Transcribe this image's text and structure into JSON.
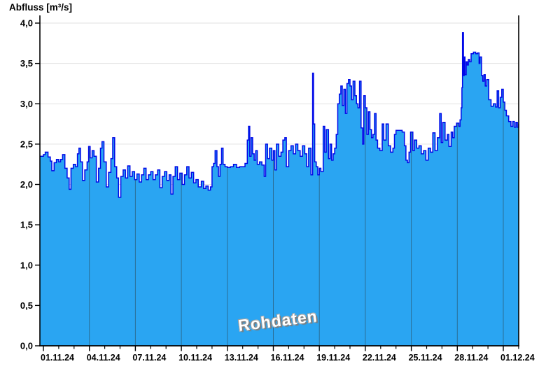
{
  "chart_data": {
    "type": "area",
    "title": "Abfluss [m³/s]",
    "watermark": "Rohdaten",
    "legend": "none",
    "x_axis": {
      "tick_labels": [
        "01.11.24",
        "04.11.24",
        "07.11.24",
        "10.11.24",
        "13.11.24",
        "16.11.24",
        "19.11.24",
        "22.11.24",
        "25.11.24",
        "28.11.24",
        "01.12.24"
      ],
      "major_tick_days": [
        0,
        3,
        6,
        9,
        12,
        15,
        18,
        21,
        24,
        27,
        30
      ],
      "minor_tick_interval_days": 1,
      "domain_days": [
        -0.23,
        31
      ]
    },
    "y_axis": {
      "label": "Abfluss [m³/s]",
      "min": 0.0,
      "max": 4.0,
      "tick_step": 0.5,
      "tick_labels": [
        "0,0",
        "0,5",
        "1,0",
        "1,5",
        "2,0",
        "2,5",
        "3,0",
        "3,5",
        "4,0"
      ]
    },
    "grid": {
      "horizontal": true,
      "vertical": true,
      "vertical_clipped_to_area": true
    },
    "colors": {
      "fill": "#2aa5f2",
      "line": "#0008e8",
      "axis": "#000000",
      "h_grid": "#e2e2e2",
      "v_grid": "#2b6e96",
      "watermark": "#ffffff"
    },
    "series": [
      {
        "name": "Abfluss Rohdaten",
        "unit": "m³/s",
        "interpolation": "step",
        "points": [
          [
            -0.23,
            2.35
          ],
          [
            0,
            2.37
          ],
          [
            0.12,
            2.4
          ],
          [
            0.3,
            2.34
          ],
          [
            0.45,
            2.29
          ],
          [
            0.55,
            2.17
          ],
          [
            0.7,
            2.27
          ],
          [
            0.85,
            2.31
          ],
          [
            1.0,
            2.28
          ],
          [
            1.12,
            2.31
          ],
          [
            1.25,
            2.37
          ],
          [
            1.4,
            2.2
          ],
          [
            1.55,
            2.08
          ],
          [
            1.68,
            1.94
          ],
          [
            1.8,
            2.2
          ],
          [
            1.95,
            2.25
          ],
          [
            2.1,
            2.22
          ],
          [
            2.22,
            2.38
          ],
          [
            2.32,
            2.45
          ],
          [
            2.42,
            2.28
          ],
          [
            2.55,
            2.05
          ],
          [
            2.7,
            2.18
          ],
          [
            2.85,
            2.28
          ],
          [
            2.95,
            2.47
          ],
          [
            3.05,
            2.33
          ],
          [
            3.18,
            2.42
          ],
          [
            3.3,
            2.35
          ],
          [
            3.45,
            2.03
          ],
          [
            3.6,
            2.2
          ],
          [
            3.72,
            2.45
          ],
          [
            3.82,
            2.53
          ],
          [
            3.95,
            2.28
          ],
          [
            4.1,
            1.97
          ],
          [
            4.25,
            2.15
          ],
          [
            4.4,
            2.32
          ],
          [
            4.52,
            2.58
          ],
          [
            4.65,
            2.22
          ],
          [
            4.78,
            2.08
          ],
          [
            4.9,
            1.84
          ],
          [
            5.05,
            2.1
          ],
          [
            5.2,
            2.18
          ],
          [
            5.35,
            2.08
          ],
          [
            5.5,
            2.23
          ],
          [
            5.65,
            2.1
          ],
          [
            5.8,
            2.16
          ],
          [
            5.95,
            2.06
          ],
          [
            6.1,
            2.13
          ],
          [
            6.25,
            2.03
          ],
          [
            6.4,
            2.12
          ],
          [
            6.55,
            2.2
          ],
          [
            6.7,
            2.06
          ],
          [
            6.85,
            2.12
          ],
          [
            7.0,
            2.16
          ],
          [
            7.15,
            2.06
          ],
          [
            7.3,
            2.12
          ],
          [
            7.45,
            2.18
          ],
          [
            7.6,
            1.96
          ],
          [
            7.75,
            2.1
          ],
          [
            7.9,
            2.16
          ],
          [
            8.05,
            2.05
          ],
          [
            8.2,
            2.12
          ],
          [
            8.32,
            1.88
          ],
          [
            8.45,
            2.1
          ],
          [
            8.6,
            2.22
          ],
          [
            8.75,
            2.06
          ],
          [
            8.9,
            2.14
          ],
          [
            9.05,
            2.0
          ],
          [
            9.2,
            2.12
          ],
          [
            9.35,
            2.22
          ],
          [
            9.5,
            2.08
          ],
          [
            9.65,
            2.15
          ],
          [
            9.8,
            2.02
          ],
          [
            9.95,
            2.06
          ],
          [
            10.1,
            1.97
          ],
          [
            10.3,
            2.04
          ],
          [
            10.45,
            1.95
          ],
          [
            10.6,
            1.98
          ],
          [
            10.75,
            1.93
          ],
          [
            10.9,
            1.97
          ],
          [
            11.0,
            2.22
          ],
          [
            11.1,
            2.26
          ],
          [
            11.2,
            2.42
          ],
          [
            11.32,
            2.22
          ],
          [
            11.42,
            2.1
          ],
          [
            11.52,
            2.25
          ],
          [
            11.62,
            2.45
          ],
          [
            11.72,
            2.25
          ],
          [
            11.85,
            2.22
          ],
          [
            12.0,
            2.21
          ],
          [
            12.2,
            2.22
          ],
          [
            12.4,
            2.25
          ],
          [
            12.6,
            2.21
          ],
          [
            12.8,
            2.22
          ],
          [
            13.0,
            2.22
          ],
          [
            13.15,
            2.26
          ],
          [
            13.3,
            2.55
          ],
          [
            13.38,
            2.72
          ],
          [
            13.46,
            2.35
          ],
          [
            13.55,
            2.58
          ],
          [
            13.65,
            2.38
          ],
          [
            13.75,
            2.3
          ],
          [
            13.85,
            2.42
          ],
          [
            13.95,
            2.25
          ],
          [
            14.1,
            2.28
          ],
          [
            14.25,
            2.24
          ],
          [
            14.4,
            2.1
          ],
          [
            14.5,
            2.5
          ],
          [
            14.62,
            2.32
          ],
          [
            14.75,
            2.45
          ],
          [
            14.9,
            2.3
          ],
          [
            15.0,
            2.42
          ],
          [
            15.1,
            2.18
          ],
          [
            15.2,
            2.5
          ],
          [
            15.35,
            2.35
          ],
          [
            15.5,
            2.4
          ],
          [
            15.62,
            2.55
          ],
          [
            15.75,
            2.58
          ],
          [
            15.85,
            2.22
          ],
          [
            16.0,
            2.42
          ],
          [
            16.15,
            2.48
          ],
          [
            16.3,
            2.38
          ],
          [
            16.45,
            2.5
          ],
          [
            16.6,
            2.42
          ],
          [
            16.75,
            2.35
          ],
          [
            16.9,
            2.48
          ],
          [
            17.05,
            2.38
          ],
          [
            17.18,
            2.22
          ],
          [
            17.3,
            2.45
          ],
          [
            17.45,
            2.12
          ],
          [
            17.56,
            3.38
          ],
          [
            17.62,
            2.75
          ],
          [
            17.7,
            2.28
          ],
          [
            17.8,
            2.22
          ],
          [
            17.9,
            2.12
          ],
          [
            18.0,
            2.2
          ],
          [
            18.1,
            2.16
          ],
          [
            18.25,
            2.72
          ],
          [
            18.35,
            2.4
          ],
          [
            18.45,
            2.68
          ],
          [
            18.6,
            2.32
          ],
          [
            18.7,
            2.5
          ],
          [
            18.8,
            2.3
          ],
          [
            18.9,
            2.38
          ],
          [
            19.0,
            2.45
          ],
          [
            19.1,
            2.62
          ],
          [
            19.2,
            3.0
          ],
          [
            19.3,
            3.12
          ],
          [
            19.4,
            3.22
          ],
          [
            19.5,
            2.98
          ],
          [
            19.6,
            3.18
          ],
          [
            19.7,
            2.88
          ],
          [
            19.8,
            3.25
          ],
          [
            19.9,
            3.3
          ],
          [
            20.0,
            3.22
          ],
          [
            20.1,
            3.05
          ],
          [
            20.2,
            3.28
          ],
          [
            20.32,
            3.1
          ],
          [
            20.42,
            3.0
          ],
          [
            20.52,
            2.95
          ],
          [
            20.62,
            3.28
          ],
          [
            20.72,
            2.7
          ],
          [
            20.82,
            2.5
          ],
          [
            20.9,
            3.1
          ],
          [
            21.0,
            2.95
          ],
          [
            21.1,
            2.62
          ],
          [
            21.2,
            2.9
          ],
          [
            21.3,
            2.68
          ],
          [
            21.4,
            2.58
          ],
          [
            21.5,
            2.62
          ],
          [
            21.6,
            2.88
          ],
          [
            21.7,
            2.55
          ],
          [
            21.8,
            2.45
          ],
          [
            21.95,
            2.42
          ],
          [
            22.1,
            2.75
          ],
          [
            22.2,
            2.55
          ],
          [
            22.35,
            2.75
          ],
          [
            22.5,
            2.48
          ],
          [
            22.65,
            2.4
          ],
          [
            22.8,
            2.45
          ],
          [
            22.9,
            2.62
          ],
          [
            23.0,
            2.67
          ],
          [
            23.2,
            2.67
          ],
          [
            23.4,
            2.65
          ],
          [
            23.55,
            2.48
          ],
          [
            23.65,
            2.3
          ],
          [
            23.75,
            2.27
          ],
          [
            23.85,
            2.4
          ],
          [
            23.95,
            2.65
          ],
          [
            24.1,
            2.42
          ],
          [
            24.2,
            2.55
          ],
          [
            24.35,
            2.45
          ],
          [
            24.5,
            2.48
          ],
          [
            24.65,
            2.38
          ],
          [
            24.8,
            2.42
          ],
          [
            24.95,
            2.3
          ],
          [
            25.1,
            2.45
          ],
          [
            25.25,
            2.4
          ],
          [
            25.4,
            2.64
          ],
          [
            25.55,
            2.42
          ],
          [
            25.7,
            2.58
          ],
          [
            25.85,
            2.88
          ],
          [
            25.95,
            2.52
          ],
          [
            26.05,
            2.77
          ],
          [
            26.2,
            2.55
          ],
          [
            26.35,
            2.62
          ],
          [
            26.45,
            2.47
          ],
          [
            26.6,
            2.65
          ],
          [
            26.7,
            2.58
          ],
          [
            26.8,
            2.72
          ],
          [
            26.95,
            2.76
          ],
          [
            27.1,
            2.72
          ],
          [
            27.18,
            2.8
          ],
          [
            27.25,
            2.95
          ],
          [
            27.3,
            3.2
          ],
          [
            27.34,
            3.88
          ],
          [
            27.4,
            3.35
          ],
          [
            27.45,
            3.58
          ],
          [
            27.5,
            3.36
          ],
          [
            27.58,
            3.52
          ],
          [
            27.65,
            3.48
          ],
          [
            27.72,
            3.55
          ],
          [
            27.8,
            3.52
          ],
          [
            27.9,
            3.62
          ],
          [
            28.05,
            3.64
          ],
          [
            28.2,
            3.62
          ],
          [
            28.32,
            3.63
          ],
          [
            28.42,
            3.5
          ],
          [
            28.48,
            3.58
          ],
          [
            28.58,
            3.35
          ],
          [
            28.66,
            3.28
          ],
          [
            28.74,
            3.36
          ],
          [
            28.82,
            3.22
          ],
          [
            28.92,
            3.3
          ],
          [
            29.05,
            3.05
          ],
          [
            29.2,
            2.97
          ],
          [
            29.35,
            3.0
          ],
          [
            29.5,
            2.96
          ],
          [
            29.6,
            3.16
          ],
          [
            29.7,
            2.95
          ],
          [
            29.8,
            3.08
          ],
          [
            29.9,
            3.18
          ],
          [
            30.0,
            3.02
          ],
          [
            30.1,
            2.92
          ],
          [
            30.2,
            2.85
          ],
          [
            30.35,
            2.78
          ],
          [
            30.5,
            2.72
          ],
          [
            30.62,
            2.78
          ],
          [
            30.72,
            2.71
          ],
          [
            30.82,
            2.77
          ],
          [
            30.92,
            2.71
          ],
          [
            31.0,
            2.75
          ]
        ]
      }
    ]
  }
}
